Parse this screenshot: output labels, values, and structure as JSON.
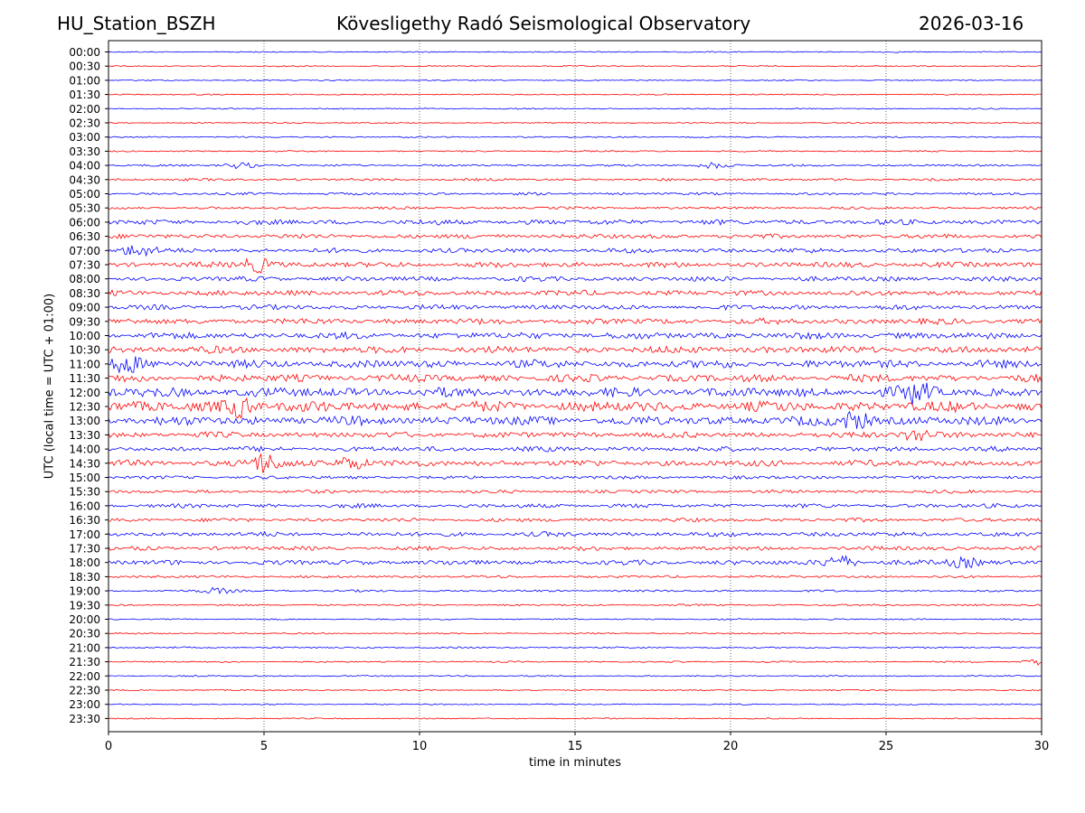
{
  "header": {
    "station": "HU_Station_BSZH",
    "observatory": "Kövesligethy Radó Seismological Observatory",
    "date": "2026-03-16"
  },
  "chart_data": {
    "type": "line",
    "title": "Kövesligethy Radó Seismological Observatory",
    "xlabel": "time in minutes",
    "ylabel": "UTC (local time = UTC + 01:00)",
    "xlim": [
      0,
      30
    ],
    "xticks": [
      0,
      5,
      10,
      15,
      20,
      25,
      30
    ],
    "grid_x": true,
    "rows": [
      "00:00",
      "00:30",
      "01:00",
      "01:30",
      "02:00",
      "02:30",
      "03:00",
      "03:30",
      "04:00",
      "04:30",
      "05:00",
      "05:30",
      "06:00",
      "06:30",
      "07:00",
      "07:30",
      "08:00",
      "08:30",
      "09:00",
      "09:30",
      "10:00",
      "10:30",
      "11:00",
      "11:30",
      "12:00",
      "12:30",
      "13:00",
      "13:30",
      "14:00",
      "14:30",
      "15:00",
      "15:30",
      "16:00",
      "16:30",
      "17:00",
      "17:30",
      "18:00",
      "18:30",
      "19:00",
      "19:30",
      "20:00",
      "20:30",
      "21:00",
      "21:30",
      "22:00",
      "22:30",
      "23:00",
      "23:30"
    ],
    "colors": [
      "#0000ff",
      "#ff0000"
    ],
    "noise_level": [
      0.6,
      0.6,
      0.6,
      0.6,
      0.6,
      0.6,
      0.7,
      0.7,
      1.0,
      1.2,
      1.2,
      1.2,
      2.5,
      2.2,
      2.3,
      2.6,
      2.4,
      2.6,
      2.4,
      2.8,
      3.2,
      3.4,
      3.8,
      3.6,
      4.6,
      5.0,
      4.4,
      2.8,
      2.4,
      3.0,
      1.6,
      1.6,
      2.0,
      1.8,
      2.2,
      2.0,
      2.4,
      1.2,
      1.0,
      0.9,
      0.7,
      0.7,
      0.8,
      0.7,
      0.7,
      0.6,
      0.6,
      0.6
    ],
    "events": [
      {
        "row": "04:00",
        "t": 4.2,
        "amp": 3
      },
      {
        "row": "04:00",
        "t": 19.5,
        "amp": 3
      },
      {
        "row": "07:00",
        "t": 0.9,
        "amp": 6
      },
      {
        "row": "07:30",
        "t": 4.8,
        "amp": 8
      },
      {
        "row": "11:00",
        "t": 0.6,
        "amp": 9
      },
      {
        "row": "12:00",
        "t": 26.0,
        "amp": 9
      },
      {
        "row": "12:30",
        "t": 4.2,
        "amp": 10
      },
      {
        "row": "13:00",
        "t": 24.0,
        "amp": 9
      },
      {
        "row": "13:30",
        "t": 26.0,
        "amp": 7
      },
      {
        "row": "14:30",
        "t": 5.0,
        "amp": 10
      },
      {
        "row": "14:30",
        "t": 7.8,
        "amp": 7
      },
      {
        "row": "18:00",
        "t": 23.5,
        "amp": 7
      },
      {
        "row": "18:00",
        "t": 27.5,
        "amp": 5
      },
      {
        "row": "19:00",
        "t": 3.5,
        "amp": 3
      },
      {
        "row": "21:30",
        "t": 29.9,
        "amp": 3
      }
    ]
  }
}
